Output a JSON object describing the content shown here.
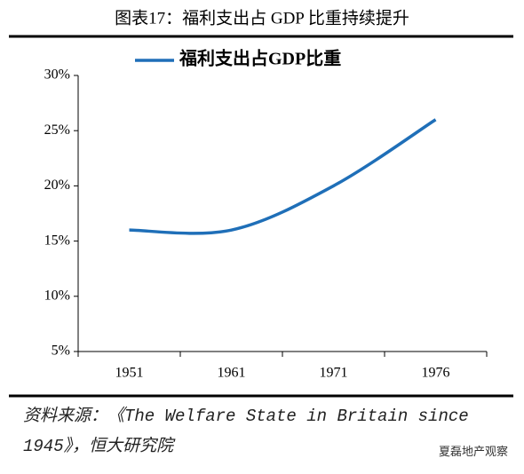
{
  "chart_data": {
    "type": "line",
    "title": "图表17：福利支出占 GDP 比重持续提升",
    "categories": [
      "1951",
      "1961",
      "1971",
      "1976"
    ],
    "series": [
      {
        "name": "福利支出占GDP比重",
        "color": "#1f6fb8",
        "values": [
          16,
          16,
          20,
          26
        ]
      }
    ],
    "ylim": [
      5,
      30
    ],
    "yticks": [
      {
        "value": 5,
        "label": "5%"
      },
      {
        "value": 10,
        "label": "10%"
      },
      {
        "value": 15,
        "label": "15%"
      },
      {
        "value": 20,
        "label": "20%"
      },
      {
        "value": 25,
        "label": "25%"
      },
      {
        "value": 30,
        "label": "30%"
      }
    ],
    "legend": "top"
  },
  "source": "资料来源：《The Welfare State in Britain since 1945》，恒大研究院",
  "watermark": "夏磊地产观察"
}
